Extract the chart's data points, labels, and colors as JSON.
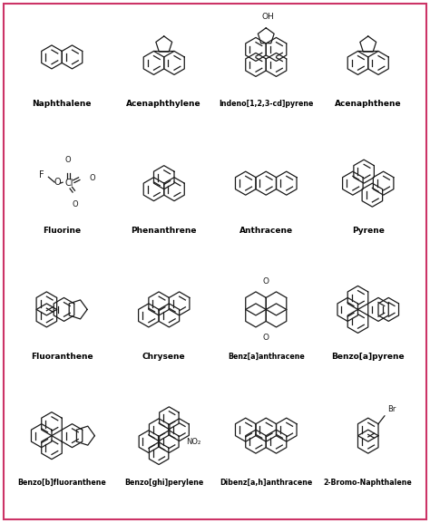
{
  "background_color": "#ffffff",
  "border_color": "#cc3366",
  "text_color": "#000000",
  "label_fontsize": 6.5,
  "fig_width": 4.74,
  "fig_height": 5.77,
  "dpi": 100,
  "compounds": [
    {
      "name": "Naphthalene"
    },
    {
      "name": "Acenaphthylene"
    },
    {
      "name": "Indeno[1,2,3-cd]pyrene"
    },
    {
      "name": "Acenaphthene"
    },
    {
      "name": "Fluorine"
    },
    {
      "name": "Phenanthrene"
    },
    {
      "name": "Anthracene"
    },
    {
      "name": "Pyrene"
    },
    {
      "name": "Fluoranthene"
    },
    {
      "name": "Chrysene"
    },
    {
      "name": "Benz[a]anthracene"
    },
    {
      "name": "Benzo[a]pyrene"
    },
    {
      "name": "Benzo[b]fluoranthene"
    },
    {
      "name": "Benzo[ghi]perylene"
    },
    {
      "name": "Dibenz[a,h]anthracene"
    },
    {
      "name": "2-Bromo-Naphthalene"
    }
  ]
}
